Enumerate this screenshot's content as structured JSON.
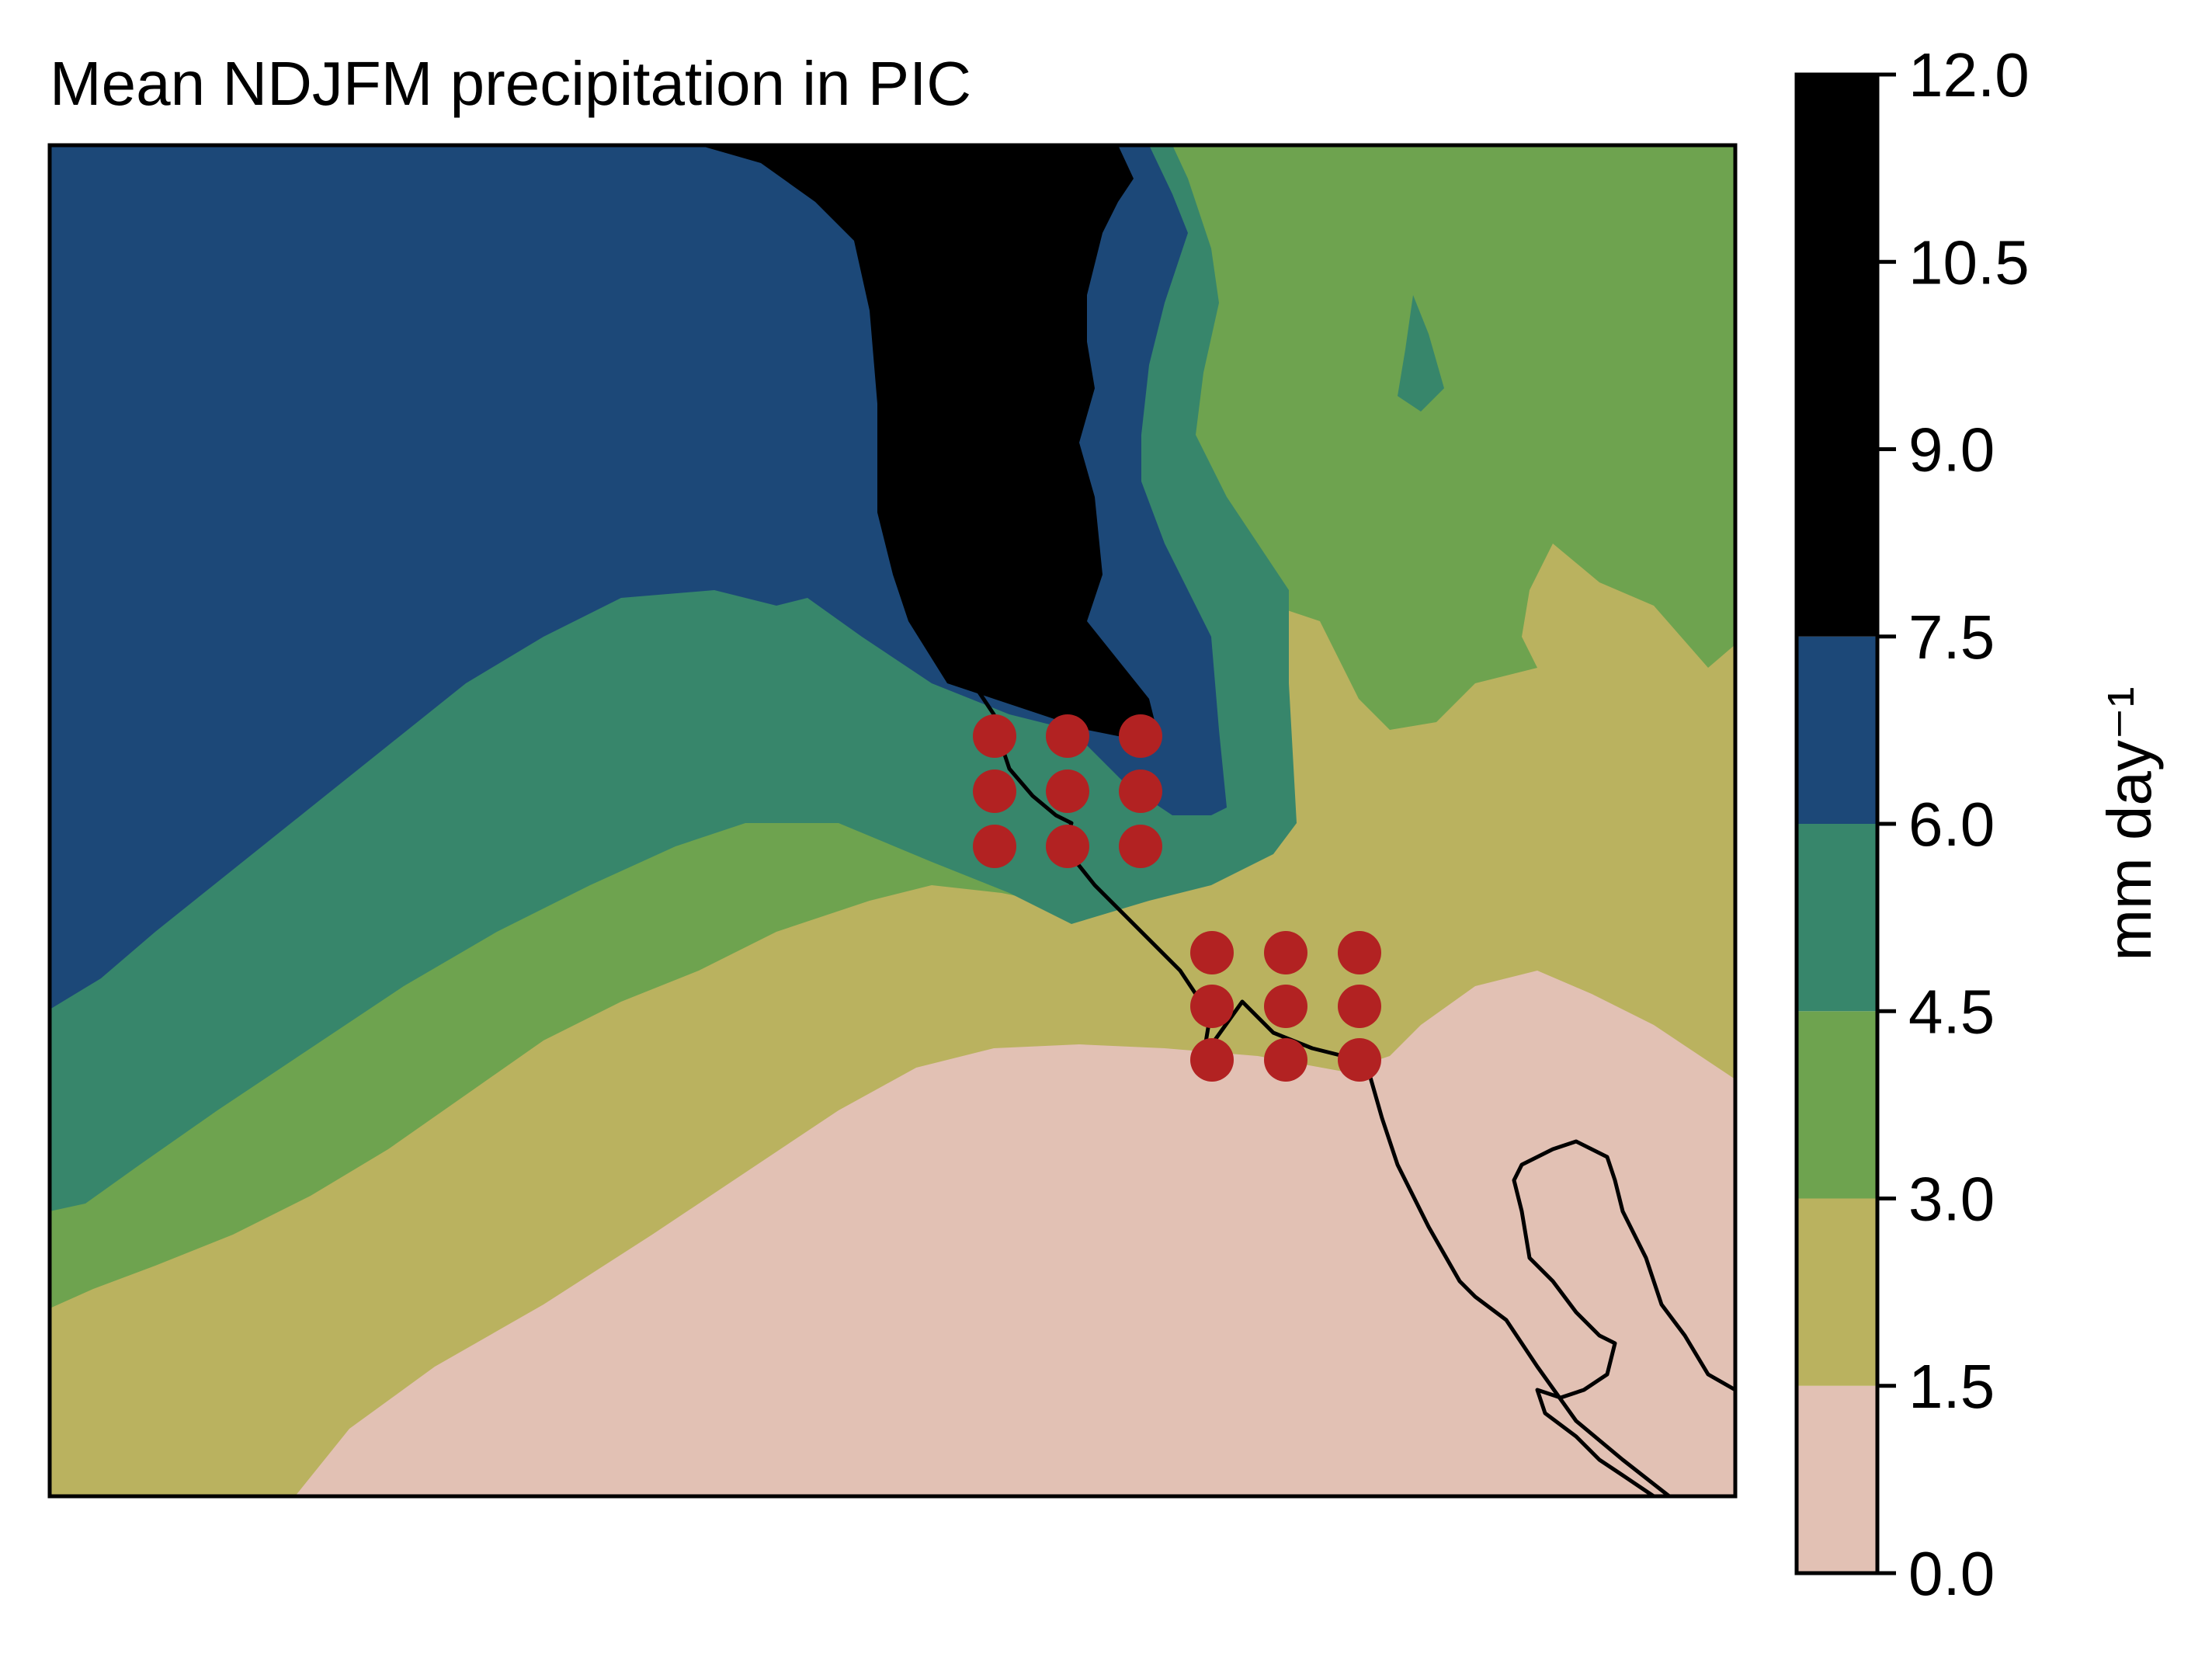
{
  "chart_data": {
    "type": "contourf map",
    "title": "Mean NDJFM precipitation in PIC",
    "colorbar": {
      "label": "mm day⁻¹",
      "tick_labels": [
        "0.0",
        "1.5",
        "3.0",
        "4.5",
        "6.0",
        "7.5",
        "9.0",
        "10.5",
        "12.0"
      ],
      "levels": [
        0.0,
        1.5,
        3.0,
        4.5,
        6.0,
        7.5,
        12.0
      ],
      "colors": [
        "#e2c1b4",
        "#bab25f",
        "#6ea34f",
        "#37866b",
        "#1c4878",
        "#000000"
      ]
    },
    "markers": {
      "color": "#b22222",
      "groups": [
        {
          "name": "",
          "count": 9
        },
        {
          "name": "",
          "count": 9
        }
      ]
    },
    "coastline_color": "#000000"
  }
}
